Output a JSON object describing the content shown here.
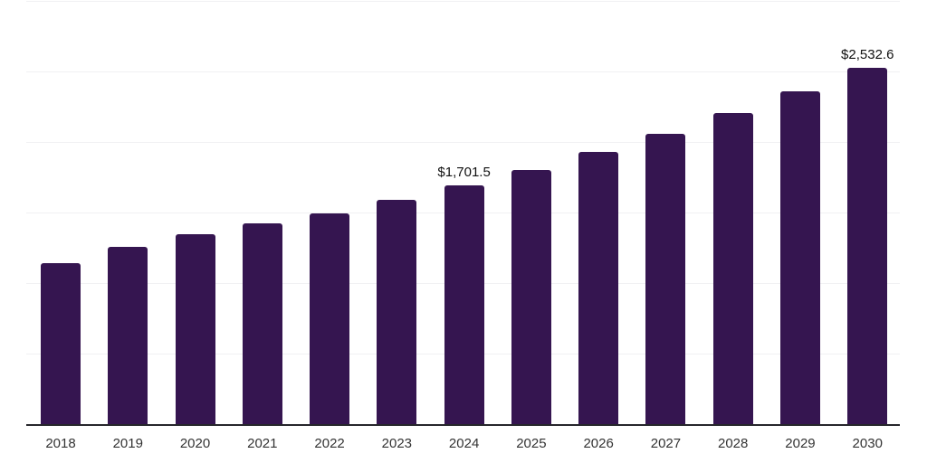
{
  "chart_data": {
    "type": "bar",
    "title": "",
    "xlabel": "",
    "ylabel": "",
    "categories": [
      "2018",
      "2019",
      "2020",
      "2021",
      "2022",
      "2023",
      "2024",
      "2025",
      "2026",
      "2027",
      "2028",
      "2029",
      "2030"
    ],
    "values": [
      1145,
      1266,
      1352,
      1429,
      1503,
      1594,
      1701.5,
      1808,
      1936,
      2064,
      2209,
      2368,
      2532.6
    ],
    "data_labels": [
      "",
      "",
      "",
      "",
      "",
      "",
      "$1,701.5",
      "",
      "",
      "",
      "",
      "",
      "$2,532.6"
    ],
    "ylim": [
      0,
      3000
    ],
    "gridline_step": 500,
    "grid": true,
    "legend": false,
    "colors": {
      "bar": "#351550",
      "gridline": "#f1f1f3",
      "axis": "#26262b",
      "tick_label": "#333333",
      "data_label": "#111111",
      "background": "#ffffff"
    }
  }
}
